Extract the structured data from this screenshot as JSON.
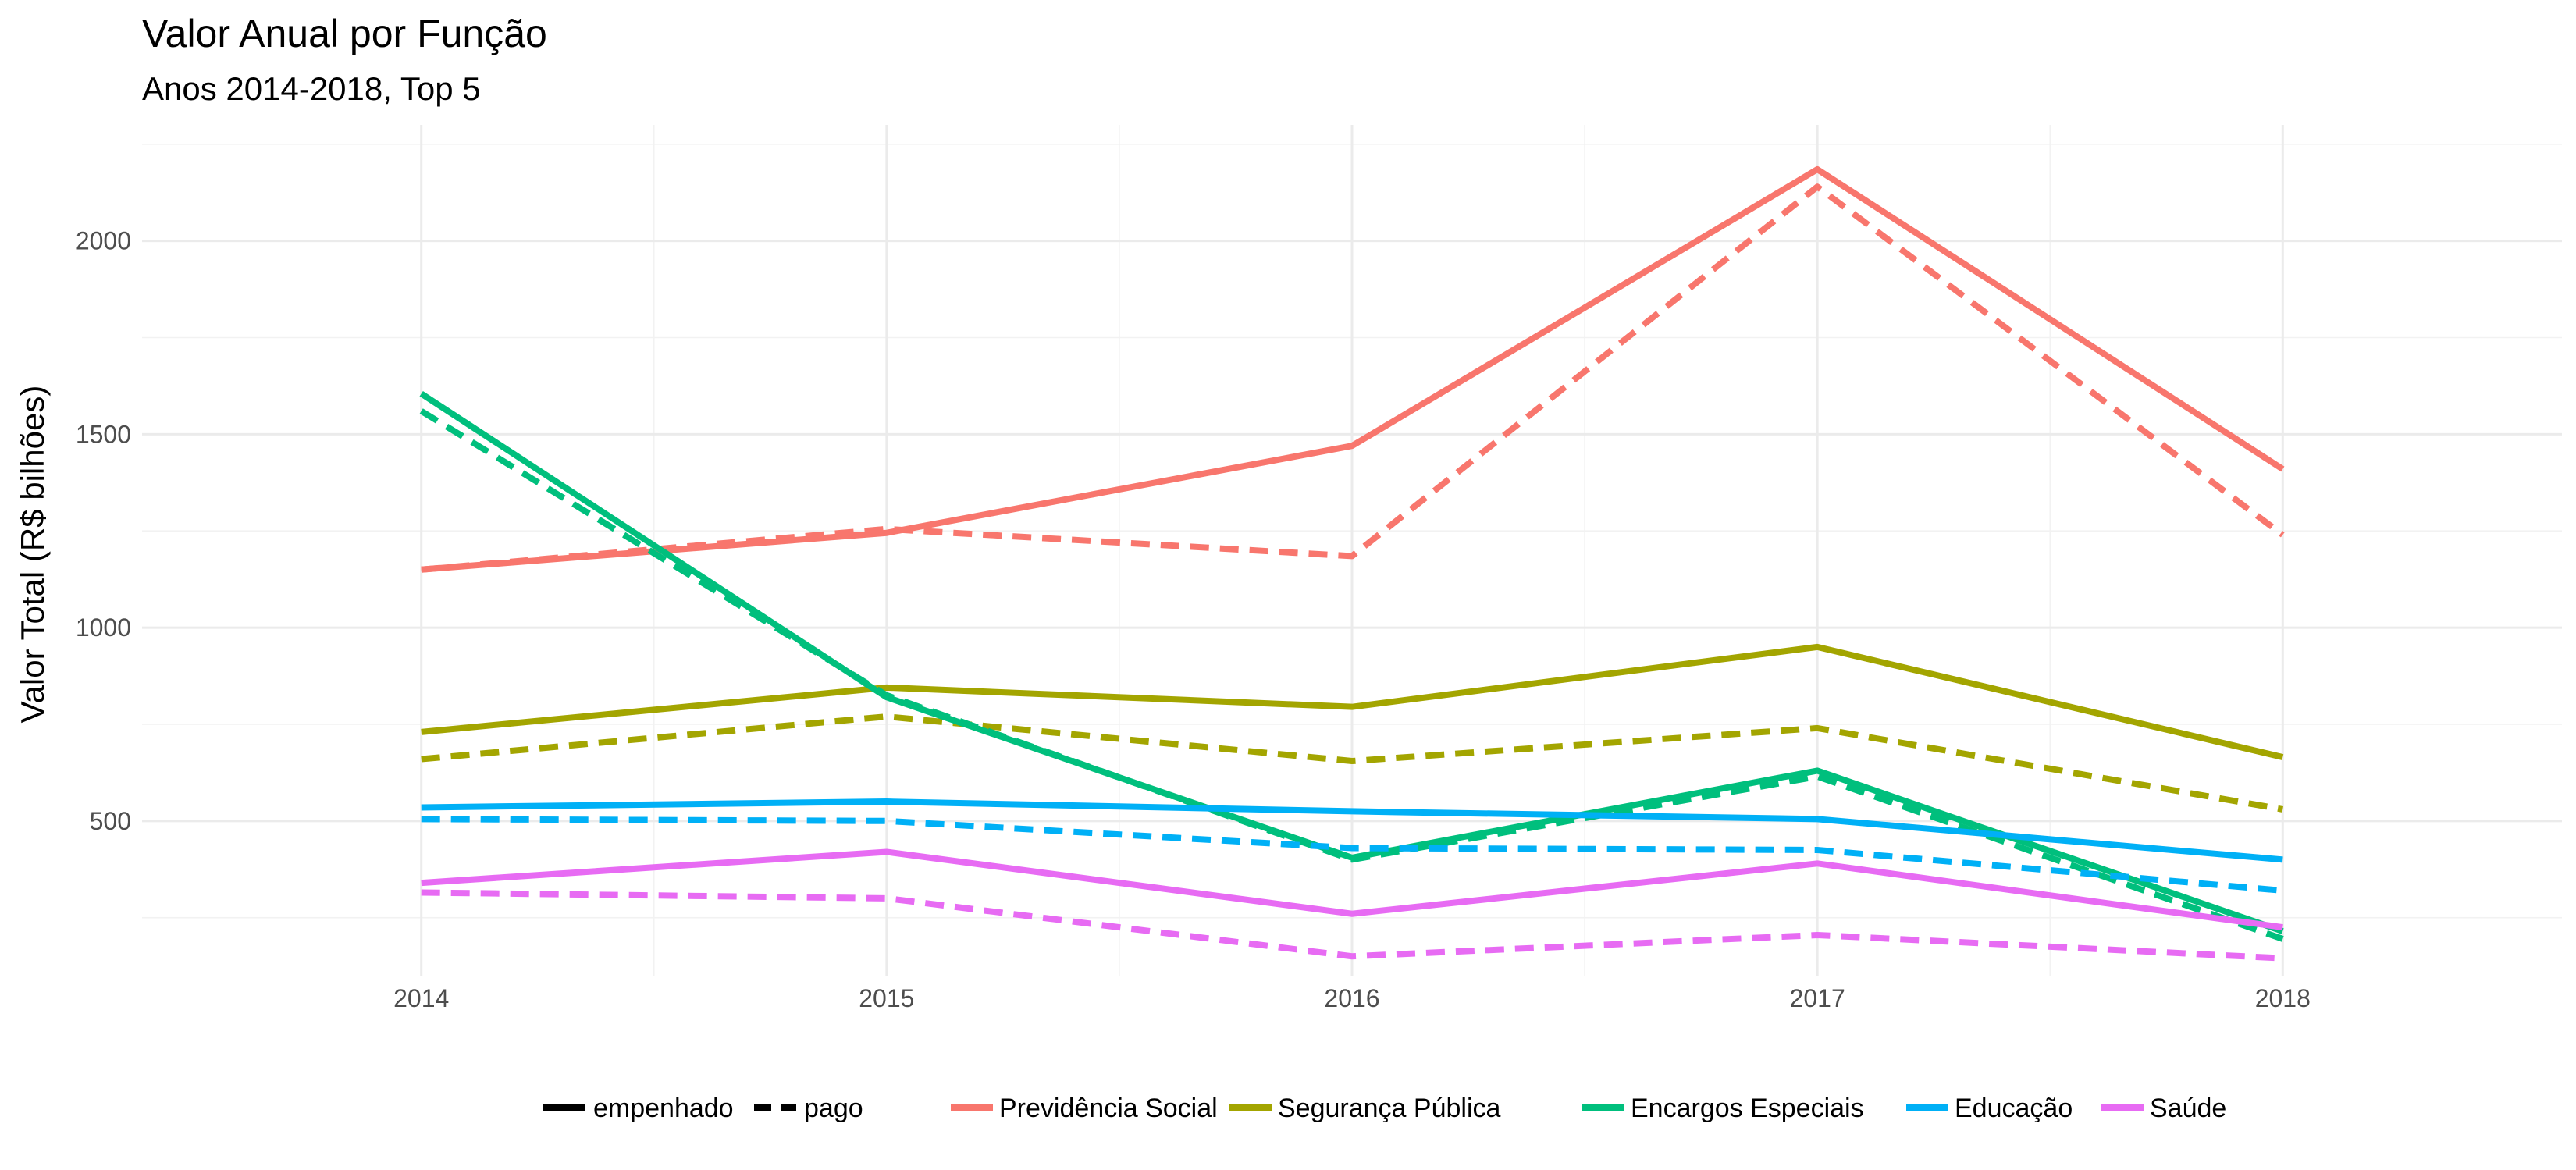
{
  "chart_data": {
    "type": "line",
    "title": "Valor Anual por Função",
    "subtitle": "Anos 2014-2018, Top 5",
    "ylabel": "Valor Total (R$ bilhões)",
    "x": [
      2014,
      2015,
      2016,
      2017,
      2018
    ],
    "xlim": [
      2013.4,
      2018.6
    ],
    "ylim": [
      100,
      2300
    ],
    "yticks": [
      500,
      1000,
      1500,
      2000
    ],
    "grid": true,
    "legend_position": "bottom",
    "linetype_legend": [
      {
        "label": "empenhado",
        "dash": "solid"
      },
      {
        "label": "pago",
        "dash": "dashed"
      }
    ],
    "series": [
      {
        "name": "Previdência Social",
        "color": "#F8766D",
        "empenhado": [
          1150,
          1245,
          1470,
          2185,
          1410
        ],
        "pago": [
          1150,
          1255,
          1185,
          2140,
          1240
        ]
      },
      {
        "name": "Segurança Pública",
        "color": "#A3A500",
        "empenhado": [
          730,
          845,
          795,
          950,
          665
        ],
        "pago": [
          660,
          770,
          655,
          740,
          530
        ]
      },
      {
        "name": "Encargos Especiais",
        "color": "#00BF7D",
        "empenhado": [
          1605,
          820,
          405,
          630,
          215
        ],
        "pago": [
          1560,
          825,
          400,
          615,
          195
        ]
      },
      {
        "name": "Educação",
        "color": "#00B0F6",
        "empenhado": [
          535,
          550,
          525,
          505,
          400
        ],
        "pago": [
          505,
          500,
          430,
          425,
          320
        ]
      },
      {
        "name": "Saúde",
        "color": "#E76BF3",
        "empenhado": [
          340,
          420,
          260,
          390,
          225
        ],
        "pago": [
          315,
          300,
          150,
          205,
          145
        ]
      }
    ]
  }
}
